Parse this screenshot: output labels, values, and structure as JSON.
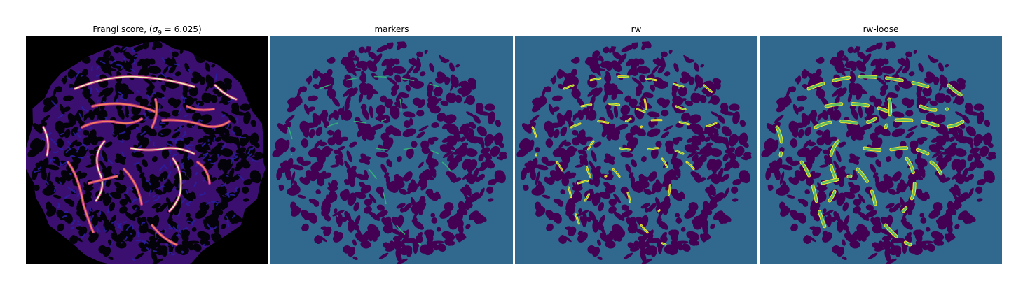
{
  "figure": {
    "panels": [
      {
        "title_prefix": "Frangi score, (",
        "title_sigma": "σ",
        "title_sub": "9",
        "title_suffix": " = 6.025)",
        "colormap": "magma",
        "background": "#000000"
      },
      {
        "title": "markers",
        "colormap": "viridis",
        "background": "#31688e"
      },
      {
        "title": "rw",
        "colormap": "viridis",
        "background": "#31688e"
      },
      {
        "title": "rw-loose",
        "colormap": "viridis",
        "background": "#31688e"
      }
    ],
    "colors": {
      "magma_dark": "#000004",
      "magma_purple": "#3b0f70",
      "magma_blue": "#2a1fa0",
      "magma_magenta": "#b5367a",
      "magma_orange": "#fb8761",
      "magma_yellow": "#fcfdbf",
      "viridis_dark": "#440154",
      "viridis_mid": "#31688e",
      "viridis_teal": "#35b779",
      "viridis_yellow": "#fde725"
    }
  }
}
